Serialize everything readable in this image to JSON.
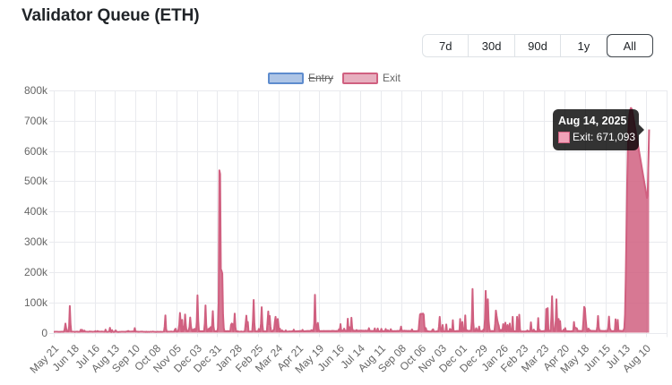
{
  "page": {
    "title": "Validator Queue (ETH)",
    "background": "#ffffff"
  },
  "range_buttons": {
    "options": [
      "7d",
      "30d",
      "90d",
      "1y",
      "All"
    ],
    "active": "All"
  },
  "legend": {
    "items": [
      {
        "label": "Entry",
        "border_color": "#5e8cce",
        "fill_color": "rgba(94,140,206,0.5)",
        "hidden": true
      },
      {
        "label": "Exit",
        "border_color": "#d06080",
        "fill_color": "rgba(208,96,128,0.5)",
        "hidden": false
      }
    ]
  },
  "tooltip": {
    "title": "Aug 14, 2025",
    "body": "Exit: 671,093",
    "swatch_fill": "#f0a2b8",
    "swatch_border": "#d06080",
    "background": "rgba(0,0,0,0.8)"
  },
  "chart_data": {
    "type": "line",
    "title": "Validator Queue (ETH)",
    "x_tick_labels": [
      "May 21",
      "Jun 18",
      "Jul 16",
      "Aug 13",
      "Sep 10",
      "Oct 08",
      "Nov 05",
      "Dec 03",
      "Dec 31",
      "Jan 28",
      "Feb 25",
      "Mar 24",
      "Apr 21",
      "May 19",
      "Jun 16",
      "Jul 14",
      "Aug 11",
      "Sep 08",
      "Oct 06",
      "Nov 03",
      "Dec 01",
      "Dec 29",
      "Jan 26",
      "Feb 23",
      "Mar 23",
      "Apr 20",
      "May 18",
      "Jun 15",
      "Jul 13",
      "Aug 10"
    ],
    "x_tick_interval_days": 28,
    "y_tick_labels": [
      "800k",
      "700k",
      "600k",
      "500k",
      "400k",
      "300k",
      "200k",
      "100k",
      "0"
    ],
    "ylim": [
      0,
      800000
    ],
    "grid": true,
    "legend_position": "top",
    "series": [
      {
        "name": "Entry",
        "hidden": true,
        "color": "#5e8cce",
        "values": []
      },
      {
        "name": "Exit",
        "hidden": false,
        "color": "#d06080",
        "points_per_day": 1,
        "values": [
          2629,
          2588,
          3094,
          2995,
          2893,
          3001,
          2407,
          2770,
          2577,
          2417,
          3145,
          2638,
          3130,
          2636,
          3269,
          12000,
          30000,
          15000,
          3721,
          3904,
          3532,
          20000,
          88000,
          28000,
          2991,
          2778,
          3101,
          2990,
          2811,
          2297,
          2871,
          2948,
          3286,
          2548,
          2566,
          2807,
          2669,
          9549,
          3225,
          9106,
          2949,
          3461,
          6828,
          3507,
          2856,
          2950,
          3040,
          2663,
          3163,
          3772,
          3283,
          3300,
          3186,
          2731,
          3057,
          2874,
          2816,
          5187,
          3307,
          3054,
          5454,
          3751,
          3207,
          3246,
          3481,
          2785,
          3710,
          3056,
          2903,
          2673,
          2949,
          9739,
          2462,
          2857,
          2325,
          2958,
          2815,
          16000,
          2432,
          1959,
          8255,
          2434,
          2137,
          2346,
          5296,
          7091,
          2676,
          2506,
          2352,
          2316,
          2644,
          2628,
          2719,
          2945,
          2837,
          2656,
          2907,
          2818,
          2291,
          3240,
          3678,
          3425,
          5619,
          3259,
          3811,
          3482,
          3194,
          3960,
          3811,
          3240,
          3812,
          15000,
          3495,
          3685,
          3487,
          2609,
          3027,
          2427,
          2827,
          3164,
          3075,
          3339,
          2949,
          2516,
          2586,
          2755,
          2208,
          2983,
          2094,
          2453,
          2720,
          2111,
          2760,
          3048,
          2485,
          2943,
          3521,
          2652,
          2645,
          2499,
          2392,
          2541,
          2981,
          2689,
          2757,
          2706,
          2459,
          2855,
          2418,
          2689,
          2776,
          3070,
          20000,
          57000,
          12000,
          2930,
          2655,
          3426,
          3166,
          3106,
          3431,
          3613,
          3131,
          3133,
          3328,
          3159,
          9897,
          12834,
          3849,
          3459,
          3641,
          9951,
          25000,
          65000,
          30000,
          4210,
          42000,
          4688,
          20000,
          9834,
          60000,
          25000,
          5199,
          5095,
          4848,
          9584,
          18000,
          50000,
          22000,
          8027,
          4685,
          9785,
          4451,
          12533,
          4772,
          5051,
          35000,
          123000,
          40000,
          4455,
          4232,
          4692,
          4417,
          4327,
          4307,
          4853,
          4623,
          30000,
          90000,
          25000,
          4673,
          4475,
          10414,
          14000,
          4848,
          18000,
          4405,
          25000,
          71000,
          20000,
          4339,
          4389,
          4466,
          4566,
          4860,
          15000,
          100000,
          536000,
          524000,
          210000,
          204000,
          195000,
          60000,
          15000,
          4393,
          4654,
          4351,
          4776,
          4697,
          5031,
          4404,
          4808,
          5231,
          26000,
          30000,
          28000,
          4281,
          20000,
          63000,
          18000,
          4144,
          4435,
          4112,
          3694,
          3276,
          3009,
          3254,
          3773,
          3050,
          2986,
          3253,
          3675,
          6274,
          30000,
          56000,
          20000,
          35000,
          3674,
          3296,
          3150,
          4000,
          3030,
          3335,
          40000,
          108000,
          30000,
          3774,
          3934,
          3899,
          3680,
          3639,
          12126,
          4240,
          4021,
          30000,
          84000,
          25000,
          4192,
          3995,
          4117,
          4016,
          3745,
          4160,
          35000,
          70000,
          28000,
          55000,
          20000,
          4142,
          4220,
          3729,
          8159,
          10099,
          35000,
          52000,
          30000,
          3585,
          45000,
          25000,
          3827,
          12861,
          3277,
          3755,
          7442,
          3464,
          3706,
          3235,
          3079,
          7315,
          2883,
          3458,
          3317,
          3867,
          4223,
          4105,
          3580,
          4231,
          4435,
          4255,
          9722,
          3720,
          3985,
          4538,
          4504,
          4680,
          4921,
          4924,
          5234,
          5663,
          4914,
          5004,
          9142,
          4551,
          4514,
          4590,
          4576,
          5055,
          5076,
          5421,
          5088,
          5461,
          5050,
          4948,
          8199,
          7709,
          5404,
          5350,
          30000,
          125000,
          35000,
          12000,
          4829,
          32000,
          10774,
          5087,
          4990,
          4994,
          5379,
          4992,
          5040,
          5543,
          5292,
          5299,
          5273,
          5072,
          5390,
          4994,
          5460,
          5289,
          5003,
          5393,
          5306,
          5852,
          5642,
          5531,
          5105,
          5050,
          4771,
          5739,
          5151,
          5683,
          10880,
          5911,
          28000,
          6020,
          6356,
          6605,
          6374,
          13065,
          6533,
          5794,
          6354,
          5751,
          46000,
          6099,
          18000,
          5923,
          5655,
          49000,
          15000,
          6270,
          6575,
          6347,
          5981,
          6311,
          8746,
          6320,
          6287,
          6108,
          6654,
          6331,
          6563,
          6602,
          6126,
          6532,
          6025,
          6097,
          6690,
          6304,
          6122,
          6287,
          6632,
          14557,
          5734,
          5560,
          5795,
          5032,
          5707,
          5705,
          5103,
          14000,
          4754,
          4986,
          4548,
          13791,
          4523,
          4618,
          4055,
          3938,
          12524,
          4431,
          5067,
          4822,
          5096,
          4638,
          12000,
          4599,
          4372,
          7818,
          4882,
          5091,
          5239,
          11293,
          5083,
          4926,
          5222,
          4532,
          5151,
          5135,
          4940,
          5357,
          5787,
          5216,
          5605,
          6481,
          8210,
          20000,
          6446,
          5879,
          5939,
          6015,
          6522,
          5714,
          5789,
          5860,
          5041,
          5892,
          5383,
          5471,
          4997,
          4951,
          10525,
          5263,
          4825,
          4834,
          4727,
          4935,
          5033,
          5217,
          5866,
          5427,
          35000,
          60000,
          62000,
          62000,
          61000,
          63000,
          60000,
          22000,
          5228,
          15000,
          4984,
          5102,
          4675,
          3881,
          3713,
          3737,
          3884,
          3348,
          9255,
          10829,
          3584,
          3833,
          3513,
          3547,
          4350,
          4081,
          4174,
          20000,
          52000,
          18000,
          4682,
          4101,
          25000,
          4572,
          4218,
          4054,
          4743,
          27000,
          4594,
          4564,
          4593,
          4275,
          12177,
          4156,
          9721,
          4860,
          41000,
          4969,
          5042,
          4598,
          4861,
          5203,
          5450,
          5099,
          5064,
          5197,
          45000,
          5155,
          5245,
          35000,
          5641,
          11818,
          6249,
          57000,
          5861,
          8344,
          6209,
          5832,
          5861,
          6151,
          6174,
          6337,
          40000,
          144000,
          35000,
          5724,
          6003,
          5807,
          14662,
          7331,
          6248,
          6032,
          20000,
          5733,
          5387,
          5325,
          5225,
          4709,
          10153,
          7498,
          45000,
          138000,
          70000,
          4963,
          110000,
          40000,
          14892,
          4958,
          4773,
          5157,
          5424,
          5192,
          5079,
          4938,
          30000,
          73000,
          55000,
          40000,
          30000,
          22000,
          5078,
          5518,
          9277,
          5982,
          5831,
          28000,
          5693,
          14196,
          33000,
          5085,
          4894,
          25000,
          10843,
          5422,
          30000,
          4772,
          4850,
          5239,
          52000,
          4404,
          4673,
          4418,
          4043,
          4026,
          52000,
          3660,
          3511,
          59000,
          11639,
          3046,
          3321,
          3761,
          4238,
          3901,
          3451,
          4069,
          3911,
          4061,
          7185,
          4465,
          4777,
          4776,
          4821,
          34000,
          9894,
          4857,
          4394,
          9954,
          4180,
          4527,
          3774,
          3843,
          3767,
          48000,
          4281,
          9223,
          4611,
          4411,
          4725,
          4655,
          5013,
          5210,
          6000,
          5477,
          78000,
          6130,
          81000,
          6048,
          6287,
          6173,
          6061,
          50000,
          120000,
          45000,
          6043,
          5626,
          5601,
          40000,
          110000,
          35000,
          5957,
          45000,
          5864,
          38000,
          5051,
          4889,
          5362,
          5529,
          10010,
          4723,
          15000,
          4669,
          5333,
          4889,
          4423,
          4696,
          4350,
          4250,
          4617,
          4945,
          5369,
          5222,
          35000,
          13907,
          16000,
          15000,
          14000,
          5336,
          5911,
          5627,
          5540,
          5727,
          5353,
          4981,
          7520,
          40000,
          85000,
          80000,
          45000,
          20000,
          4704,
          4429,
          13383,
          6691,
          8000,
          5823,
          5752,
          5428,
          6030,
          5716,
          5618,
          5422,
          5424,
          4852,
          20000,
          55000,
          18000,
          6007,
          6012,
          6262,
          5735,
          5559,
          5733,
          5349,
          5559,
          5943,
          5710,
          5606,
          5608,
          18000,
          53000,
          15000,
          8981,
          5515,
          5288,
          4725,
          5238,
          5552,
          5388,
          44000,
          5111,
          5723,
          42000,
          6168,
          6313,
          5794,
          5918,
          5374,
          5444,
          5351,
          8000,
          15000,
          60000,
          180000,
          340000,
          500000,
          620000,
          690000,
          720000,
          735000,
          742000,
          740000,
          731000,
          716700,
          702400,
          688100,
          673800,
          659500,
          645200,
          630900,
          616600,
          602300,
          588000,
          573700,
          559400,
          545100,
          530800,
          516500,
          502200,
          487900,
          473600,
          459300,
          445000,
          452000,
          560000,
          671093
        ]
      }
    ],
    "highlighted_point": {
      "series": "Exit",
      "date": "Aug 14, 2025",
      "value": 671093
    }
  }
}
